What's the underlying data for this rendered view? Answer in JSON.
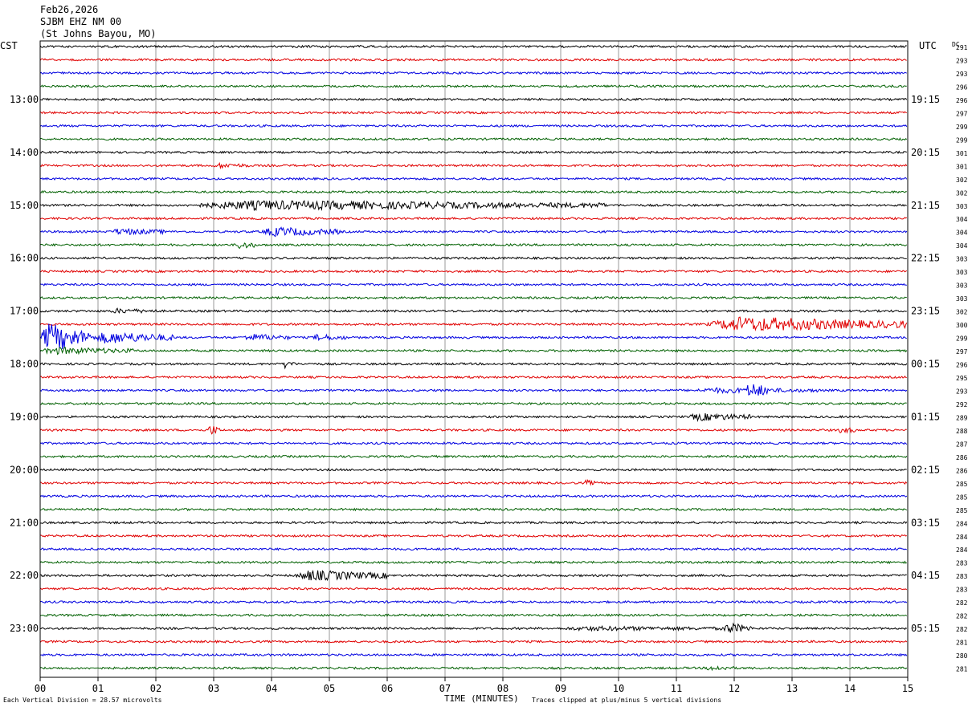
{
  "header": {
    "date": "Feb26,2026",
    "station": "SJBM EHZ NM 00",
    "location": "(St Johns Bayou, MO)"
  },
  "left_timezone": "CST",
  "right_timezone": "UTC",
  "dc_label": "DC",
  "footer": {
    "division_note": "Each Vertical Division =   28.57 microvolts",
    "xlabel": "TIME (MINUTES)",
    "clip_note": "Traces clipped at plus/minus 5 vertical divisions"
  },
  "colors": {
    "trace_cycle": [
      "#000000",
      "#e00000",
      "#0000e0",
      "#006000"
    ],
    "grid": "#7f7f7f",
    "border": "#000000"
  },
  "chart_data": {
    "type": "line",
    "title": "SJBM EHZ NM 00",
    "xlabel": "TIME (MINUTES)",
    "xlim": [
      0,
      15
    ],
    "x_ticks": [
      "00",
      "01",
      "02",
      "03",
      "04",
      "05",
      "06",
      "07",
      "08",
      "09",
      "10",
      "11",
      "12",
      "13",
      "14",
      "15"
    ],
    "row_minutes": 15,
    "rows_count": 48,
    "left_hour_labels": [
      "13:00",
      "14:00",
      "15:00",
      "16:00",
      "17:00",
      "18:00",
      "19:00",
      "20:00",
      "21:00",
      "22:00",
      "23:00"
    ],
    "right_hour_labels": [
      "19:15",
      "20:15",
      "21:15",
      "22:15",
      "23:15",
      "00:15",
      "01:15",
      "02:15",
      "03:15",
      "04:15",
      "05:15"
    ],
    "hour_label_first_row": 4,
    "dc_offsets": [
      291,
      293,
      293,
      296,
      296,
      297,
      299,
      299,
      301,
      301,
      302,
      302,
      303,
      304,
      304,
      304,
      303,
      303,
      303,
      303,
      302,
      300,
      299,
      297,
      296,
      295,
      293,
      292,
      289,
      288,
      287,
      286,
      286,
      285,
      285,
      285,
      284,
      284,
      284,
      283,
      283,
      283,
      282,
      282,
      282,
      281,
      280,
      281
    ],
    "events": [
      {
        "row": 9,
        "start_min": 3.0,
        "end_min": 3.6,
        "amp": 0.25
      },
      {
        "row": 12,
        "start_min": 2.5,
        "end_min": 9.8,
        "amp": 0.55
      },
      {
        "row": 14,
        "start_min": 1.2,
        "end_min": 2.2,
        "amp": 0.35
      },
      {
        "row": 14,
        "start_min": 3.8,
        "end_min": 5.2,
        "amp": 0.55
      },
      {
        "row": 15,
        "start_min": 3.4,
        "end_min": 3.7,
        "amp": 0.5
      },
      {
        "row": 20,
        "start_min": 1.2,
        "end_min": 2.0,
        "amp": 0.25
      },
      {
        "row": 21,
        "start_min": 11.5,
        "end_min": 15.0,
        "amp": 0.95
      },
      {
        "row": 22,
        "start_min": 0.0,
        "end_min": 0.9,
        "amp": 2.0
      },
      {
        "row": 22,
        "start_min": 0.9,
        "end_min": 2.3,
        "amp": 0.75
      },
      {
        "row": 22,
        "start_min": 3.5,
        "end_min": 4.3,
        "amp": 0.4
      },
      {
        "row": 22,
        "start_min": 4.7,
        "end_min": 5.3,
        "amp": 0.35
      },
      {
        "row": 23,
        "start_min": 0.0,
        "end_min": 1.6,
        "amp": 0.4
      },
      {
        "row": 24,
        "start_min": 4.2,
        "end_min": 4.4,
        "amp": 0.45
      },
      {
        "row": 26,
        "start_min": 12.2,
        "end_min": 12.6,
        "amp": 0.85
      },
      {
        "row": 26,
        "start_min": 11.3,
        "end_min": 13.5,
        "amp": 0.25
      },
      {
        "row": 28,
        "start_min": 11.2,
        "end_min": 12.3,
        "amp": 0.45
      },
      {
        "row": 29,
        "start_min": 2.9,
        "end_min": 3.1,
        "amp": 0.7
      },
      {
        "row": 29,
        "start_min": 13.8,
        "end_min": 14.1,
        "amp": 0.35
      },
      {
        "row": 33,
        "start_min": 9.4,
        "end_min": 9.6,
        "amp": 0.3
      },
      {
        "row": 40,
        "start_min": 4.4,
        "end_min": 6.0,
        "amp": 0.65
      },
      {
        "row": 44,
        "start_min": 11.8,
        "end_min": 12.3,
        "amp": 0.7
      },
      {
        "row": 44,
        "start_min": 9.0,
        "end_min": 11.8,
        "amp": 0.2
      },
      {
        "row": 47,
        "start_min": 11.5,
        "end_min": 12.0,
        "amp": 0.25
      }
    ]
  }
}
